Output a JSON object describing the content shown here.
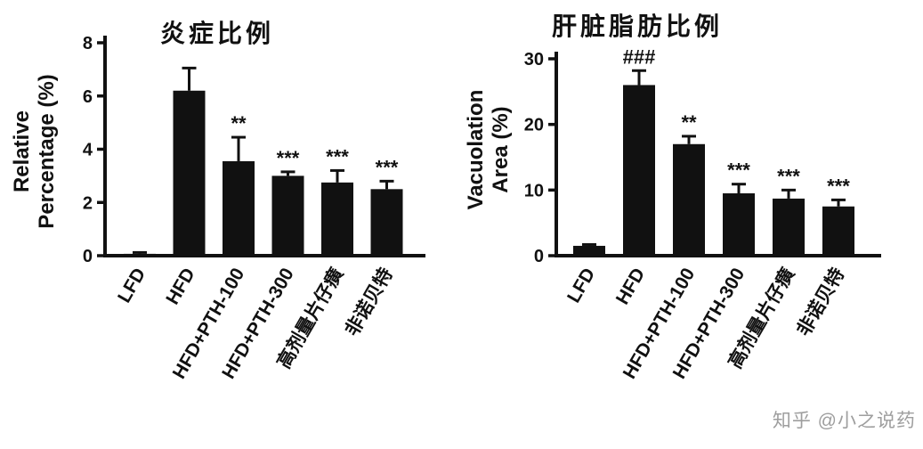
{
  "watermark": "知乎 @小之说药",
  "chart_data": [
    {
      "type": "bar",
      "title": "炎症比例",
      "ylabel": "Relative Percentage (%)",
      "ylabel_lines": [
        "Relative",
        "Percentage (%)"
      ],
      "categories": [
        "LFD",
        "HFD",
        "HFD+PTH-100",
        "HFD+PTH-300",
        "高剂量片仔癀",
        "非诺贝特"
      ],
      "values": [
        0.07,
        6.2,
        3.55,
        3.0,
        2.75,
        2.5
      ],
      "errors": [
        0.05,
        0.85,
        0.9,
        0.15,
        0.45,
        0.3
      ],
      "sig_labels": [
        "",
        "",
        "**",
        "***",
        "***",
        "***"
      ],
      "ylim": [
        0,
        8
      ],
      "yticks": [
        0,
        2,
        4,
        6,
        8
      ],
      "bar_color": "#111111",
      "legend": "none",
      "grid": "off"
    },
    {
      "type": "bar",
      "title": "肝脏脂肪比例",
      "ylabel": "Vacuolation Area (%)",
      "ylabel_lines": [
        "Vacuolation",
        "Area (%)"
      ],
      "categories": [
        "LFD",
        "HFD",
        "HFD+PTH-100",
        "HFD+PTH-300",
        "高剂量片仔癀",
        "非诺贝特"
      ],
      "values": [
        1.5,
        26.0,
        17.0,
        9.5,
        8.7,
        7.5
      ],
      "errors": [
        0.2,
        2.2,
        1.2,
        1.4,
        1.3,
        1.0
      ],
      "sig_labels": [
        "",
        "###",
        "**",
        "***",
        "***",
        "***"
      ],
      "ylim": [
        0,
        30
      ],
      "yticks": [
        0,
        10,
        20,
        30
      ],
      "bar_color": "#111111",
      "legend": "none",
      "grid": "off"
    }
  ]
}
